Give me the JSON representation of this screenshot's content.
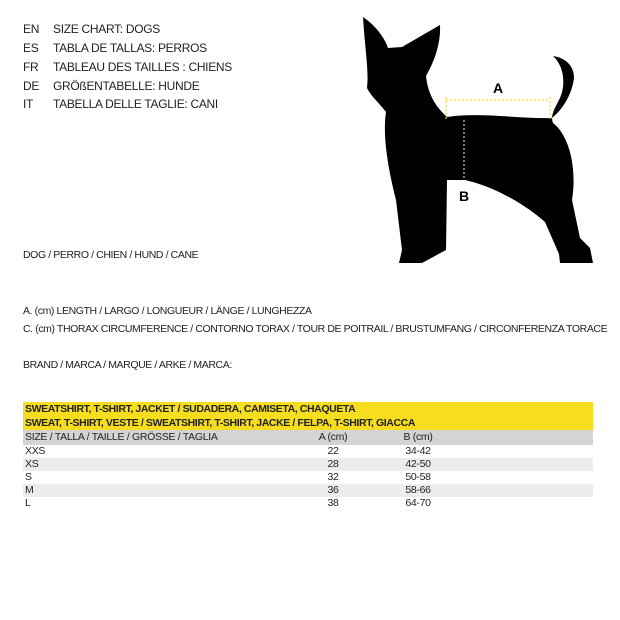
{
  "titles": [
    {
      "lang": "EN",
      "text": "SIZE CHART: DOGS"
    },
    {
      "lang": "ES",
      "text": "TABLA DE TALLAS: PERROS"
    },
    {
      "lang": "FR",
      "text": "TABLEAU DES TAILLES : CHIENS"
    },
    {
      "lang": "DE",
      "text": "GRÖßENTABELLE: HUNDE"
    },
    {
      "lang": "IT",
      "text": "TABELLA DELLE TAGLIE: CANI"
    }
  ],
  "diagram": {
    "label_a": "A",
    "label_b": "B",
    "measure_color": "#f6de1e"
  },
  "animal": "DOG / PERRO / CHIEN / HUND / CANE",
  "legend_a": "A. (cm) LENGTH / LARGO / LONGUEUR / LÄNGE / LUNGHEZZA",
  "legend_c": "C. (cm) THORAX CIRCUMFERENCE / CONTORNO TORAX / TOUR DE POITRAIL / BRUSTUMFANG / CIRCONFERENZA TORACE",
  "brand": "BRAND / MARCA / MARQUE / ARKE / MARCA:",
  "table": {
    "title1": "SWEATSHIRT, T-SHIRT, JACKET / SUDADERA, CAMISETA, CHAQUETA",
    "title2": "SWEAT, T-SHIRT, VESTE / SWEATSHIRT, T-SHIRT, JACKE / FELPA, T-SHIRT, GIACCA",
    "headers": [
      "SIZE / TALLA / TAILLE / GRÖSSE / TAGLIA",
      "A (cm)",
      "B (cm)"
    ],
    "rows": [
      [
        "XXS",
        "22",
        "34-42"
      ],
      [
        "XS",
        "28",
        "42-50"
      ],
      [
        "S",
        "32",
        "50-58"
      ],
      [
        "M",
        "36",
        "58-66"
      ],
      [
        "L",
        "38",
        "64-70"
      ]
    ]
  }
}
